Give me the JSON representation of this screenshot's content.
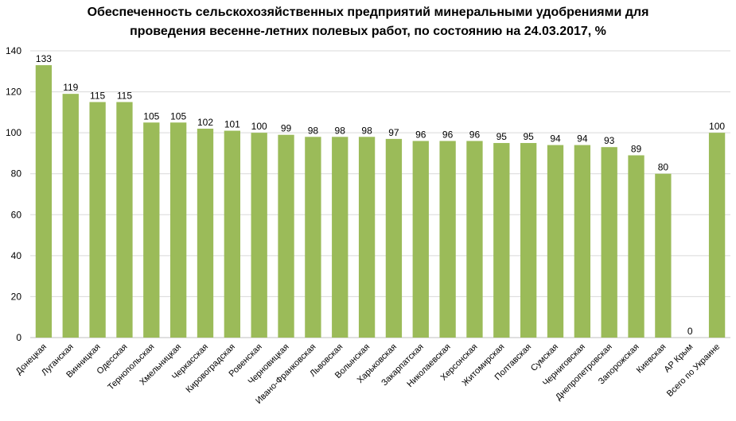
{
  "chart_data": {
    "type": "bar",
    "title_line1": "Обеспеченность сельскохозяйственных предприятий минеральными удобрениями для",
    "title_line2": "проведения весенне-летних полевых работ, по состоянию на 24.03.2017, %",
    "xlabel": "",
    "ylabel": "",
    "ylim": [
      0,
      140
    ],
    "yticks": [
      0,
      20,
      40,
      60,
      80,
      100,
      120,
      140
    ],
    "grid": true,
    "legend": "none",
    "bar_color": "#9bbb59",
    "categories": [
      "Донецкая",
      "Луганская",
      "Винницкая",
      "Одесская",
      "Тернопольская",
      "Хмельницкая",
      "Черкасская",
      "Кировоградская",
      "Ровенская",
      "Черновицкая",
      "Ивано-Франковская",
      "Львовская",
      "Волынская",
      "Харьковская",
      "Закарпатская",
      "Николаевская",
      "Херсонская",
      "Житомирская",
      "Полтавская",
      "Сумская",
      "Черниговская",
      "Днепропетровская",
      "Запорожская",
      "Киевская",
      "АР Крым",
      "Всего по Украине"
    ],
    "values": [
      133,
      119,
      115,
      115,
      105,
      105,
      102,
      101,
      100,
      99,
      98,
      98,
      98,
      97,
      96,
      96,
      96,
      95,
      95,
      94,
      94,
      93,
      89,
      80,
      0,
      100
    ]
  }
}
